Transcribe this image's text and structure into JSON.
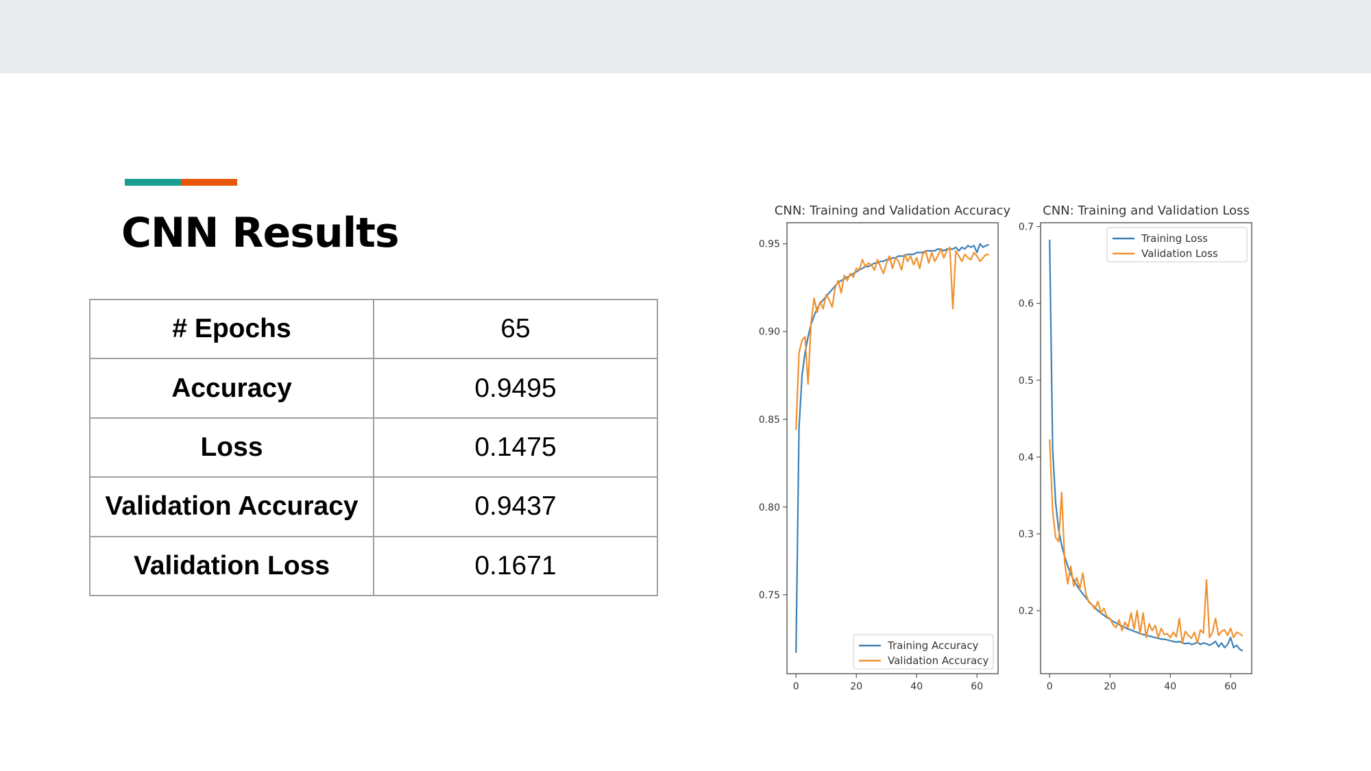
{
  "slide": {
    "title": "CNN Results",
    "accent_colors": [
      "#1a9e8f",
      "#e8560a"
    ],
    "table": [
      {
        "metric": "# Epochs",
        "value": "65"
      },
      {
        "metric": "Accuracy",
        "value": "0.9495"
      },
      {
        "metric": "Loss",
        "value": "0.1475"
      },
      {
        "metric": "Validation Accuracy",
        "value": "0.9437"
      },
      {
        "metric": "Validation Loss",
        "value": "0.1671"
      }
    ]
  },
  "chart_data": [
    {
      "type": "line",
      "title": "CNN: Training and Validation Accuracy",
      "xlabel": "",
      "ylabel": "",
      "xlim": [
        -3,
        67
      ],
      "ylim": [
        0.705,
        0.962
      ],
      "xticks": [
        0,
        20,
        40,
        60
      ],
      "yticks": [
        0.75,
        0.8,
        0.85,
        0.9,
        0.95
      ],
      "grid": false,
      "legend": "bottom-right",
      "series": [
        {
          "name": "Training Accuracy",
          "color": "#3b7fb6",
          "x": [
            0,
            1,
            2,
            3,
            4,
            5,
            6,
            7,
            8,
            9,
            10,
            11,
            12,
            13,
            14,
            15,
            16,
            17,
            18,
            19,
            20,
            21,
            22,
            23,
            24,
            25,
            26,
            27,
            28,
            29,
            30,
            31,
            32,
            33,
            34,
            35,
            36,
            37,
            38,
            39,
            40,
            41,
            42,
            43,
            44,
            45,
            46,
            47,
            48,
            49,
            50,
            51,
            52,
            53,
            54,
            55,
            56,
            57,
            58,
            59,
            60,
            61,
            62,
            63,
            64
          ],
          "y": [
            0.717,
            0.845,
            0.875,
            0.888,
            0.897,
            0.904,
            0.909,
            0.913,
            0.916,
            0.918,
            0.92,
            0.922,
            0.924,
            0.926,
            0.928,
            0.929,
            0.93,
            0.931,
            0.932,
            0.933,
            0.934,
            0.935,
            0.936,
            0.937,
            0.937,
            0.938,
            0.939,
            0.939,
            0.94,
            0.94,
            0.941,
            0.941,
            0.942,
            0.942,
            0.943,
            0.943,
            0.943,
            0.944,
            0.944,
            0.944,
            0.945,
            0.945,
            0.945,
            0.946,
            0.946,
            0.946,
            0.946,
            0.947,
            0.947,
            0.946,
            0.947,
            0.947,
            0.947,
            0.948,
            0.946,
            0.948,
            0.947,
            0.949,
            0.948,
            0.949,
            0.945,
            0.95,
            0.948,
            0.949,
            0.9495
          ]
        },
        {
          "name": "Validation Accuracy",
          "color": "#f0902e",
          "x": [
            0,
            1,
            2,
            3,
            4,
            5,
            6,
            7,
            8,
            9,
            10,
            11,
            12,
            13,
            14,
            15,
            16,
            17,
            18,
            19,
            20,
            21,
            22,
            23,
            24,
            25,
            26,
            27,
            28,
            29,
            30,
            31,
            32,
            33,
            34,
            35,
            36,
            37,
            38,
            39,
            40,
            41,
            42,
            43,
            44,
            45,
            46,
            47,
            48,
            49,
            50,
            51,
            52,
            53,
            54,
            55,
            56,
            57,
            58,
            59,
            60,
            61,
            62,
            63,
            64
          ],
          "y": [
            0.844,
            0.888,
            0.895,
            0.897,
            0.87,
            0.905,
            0.919,
            0.911,
            0.917,
            0.913,
            0.921,
            0.918,
            0.914,
            0.925,
            0.929,
            0.922,
            0.932,
            0.929,
            0.933,
            0.931,
            0.936,
            0.935,
            0.941,
            0.937,
            0.939,
            0.938,
            0.935,
            0.941,
            0.937,
            0.933,
            0.939,
            0.943,
            0.936,
            0.942,
            0.94,
            0.935,
            0.944,
            0.94,
            0.943,
            0.938,
            0.942,
            0.936,
            0.944,
            0.946,
            0.939,
            0.945,
            0.94,
            0.943,
            0.947,
            0.942,
            0.946,
            0.948,
            0.913,
            0.946,
            0.943,
            0.94,
            0.944,
            0.942,
            0.941,
            0.945,
            0.943,
            0.94,
            0.942,
            0.944,
            0.9437
          ]
        }
      ]
    },
    {
      "type": "line",
      "title": "CNN: Training and Validation Loss",
      "xlabel": "",
      "ylabel": "",
      "xlim": [
        -3,
        67
      ],
      "ylim": [
        0.118,
        0.705
      ],
      "xticks": [
        0,
        20,
        40,
        60
      ],
      "yticks": [
        0.2,
        0.3,
        0.4,
        0.5,
        0.6,
        0.7
      ],
      "grid": false,
      "legend": "top-right",
      "series": [
        {
          "name": "Training Loss",
          "color": "#3b7fb6",
          "x": [
            0,
            1,
            2,
            3,
            4,
            5,
            6,
            7,
            8,
            9,
            10,
            11,
            12,
            13,
            14,
            15,
            16,
            17,
            18,
            19,
            20,
            21,
            22,
            23,
            24,
            25,
            26,
            27,
            28,
            29,
            30,
            31,
            32,
            33,
            34,
            35,
            36,
            37,
            38,
            39,
            40,
            41,
            42,
            43,
            44,
            45,
            46,
            47,
            48,
            49,
            50,
            51,
            52,
            53,
            54,
            55,
            56,
            57,
            58,
            59,
            60,
            61,
            62,
            63,
            64
          ],
          "y": [
            0.683,
            0.41,
            0.34,
            0.305,
            0.285,
            0.27,
            0.258,
            0.248,
            0.24,
            0.233,
            0.227,
            0.222,
            0.217,
            0.212,
            0.208,
            0.204,
            0.2,
            0.197,
            0.194,
            0.191,
            0.189,
            0.186,
            0.184,
            0.182,
            0.18,
            0.178,
            0.176,
            0.175,
            0.173,
            0.172,
            0.17,
            0.169,
            0.168,
            0.167,
            0.166,
            0.165,
            0.164,
            0.163,
            0.163,
            0.162,
            0.161,
            0.16,
            0.159,
            0.16,
            0.158,
            0.157,
            0.158,
            0.156,
            0.157,
            0.159,
            0.156,
            0.158,
            0.157,
            0.155,
            0.157,
            0.16,
            0.153,
            0.158,
            0.152,
            0.156,
            0.165,
            0.152,
            0.155,
            0.15,
            0.1475
          ]
        },
        {
          "name": "Validation Loss",
          "color": "#f0902e",
          "x": [
            0,
            1,
            2,
            3,
            4,
            5,
            6,
            7,
            8,
            9,
            10,
            11,
            12,
            13,
            14,
            15,
            16,
            17,
            18,
            19,
            20,
            21,
            22,
            23,
            24,
            25,
            26,
            27,
            28,
            29,
            30,
            31,
            32,
            33,
            34,
            35,
            36,
            37,
            38,
            39,
            40,
            41,
            42,
            43,
            44,
            45,
            46,
            47,
            48,
            49,
            50,
            51,
            52,
            53,
            54,
            55,
            56,
            57,
            58,
            59,
            60,
            61,
            62,
            63,
            64
          ],
          "y": [
            0.423,
            0.33,
            0.295,
            0.29,
            0.354,
            0.262,
            0.235,
            0.258,
            0.232,
            0.243,
            0.228,
            0.249,
            0.222,
            0.211,
            0.208,
            0.202,
            0.212,
            0.197,
            0.203,
            0.192,
            0.19,
            0.182,
            0.178,
            0.188,
            0.174,
            0.185,
            0.178,
            0.197,
            0.176,
            0.2,
            0.17,
            0.197,
            0.165,
            0.183,
            0.174,
            0.181,
            0.165,
            0.177,
            0.169,
            0.17,
            0.165,
            0.172,
            0.166,
            0.19,
            0.158,
            0.173,
            0.168,
            0.164,
            0.172,
            0.158,
            0.175,
            0.171,
            0.24,
            0.165,
            0.172,
            0.19,
            0.168,
            0.173,
            0.175,
            0.168,
            0.177,
            0.165,
            0.172,
            0.17,
            0.1671
          ]
        }
      ]
    }
  ]
}
